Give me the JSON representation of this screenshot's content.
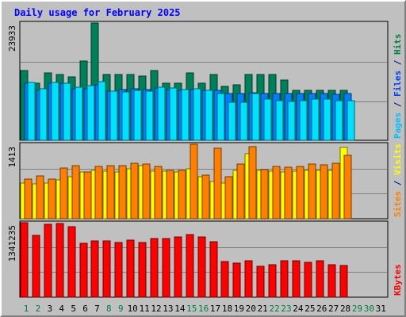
{
  "chart_data": {
    "type": "bar",
    "title": "Daily usage for February 2025",
    "categories": [
      "1",
      "2",
      "3",
      "4",
      "5",
      "6",
      "7",
      "8",
      "9",
      "10",
      "11",
      "12",
      "13",
      "14",
      "15",
      "16",
      "17",
      "18",
      "19",
      "20",
      "21",
      "22",
      "23",
      "24",
      "25",
      "26",
      "27",
      "28",
      "29",
      "30",
      "31"
    ],
    "weekend_days": [
      "1",
      "2",
      "8",
      "9",
      "15",
      "16",
      "22",
      "23",
      "29",
      "30"
    ],
    "panels": [
      {
        "id": "hits-files-pages",
        "max_label": "23933",
        "ymax": 23933,
        "side_labels": [
          {
            "text": "Pages",
            "color": "#00c0ff"
          },
          {
            "text": " / ",
            "color": "#000080"
          },
          {
            "text": "Files",
            "color": "#0040ff"
          },
          {
            "text": " / ",
            "color": "#000080"
          },
          {
            "text": "Hits",
            "color": "#008040"
          }
        ],
        "series": [
          {
            "name": "Hits",
            "color": "#00805a",
            "values": [
              14150,
              11700,
              13780,
              13410,
              12960,
              16180,
              23933,
              13410,
              13400,
              13400,
              13030,
              14150,
              11700,
              11700,
              13780,
              11700,
              13410,
              10950,
              11300,
              13410,
              13380,
              13400,
              12230,
              10220,
              10190,
              10220,
              10190,
              10220,
              null,
              null,
              null
            ]
          },
          {
            "name": "Files",
            "color": "#0080ff",
            "values": [
              11640,
              10180,
              11640,
              11660,
              10540,
              10540,
              11330,
              10100,
              10320,
              10520,
              10290,
              10750,
              10300,
              10240,
              10280,
              10240,
              10180,
              9510,
              9510,
              9700,
              9510,
              9510,
              9510,
              9510,
              9500,
              9500,
              9460,
              9530,
              null,
              null,
              null
            ]
          },
          {
            "name": "Pages",
            "color": "#00e0ff",
            "values": [
              11800,
              10510,
              11750,
              11720,
              10900,
              11140,
              12000,
              10010,
              9920,
              10130,
              9990,
              10910,
              10630,
              10340,
              10540,
              10170,
              9600,
              7840,
              7790,
              9610,
              8350,
              8100,
              7980,
              8100,
              8450,
              8350,
              8100,
              8040,
              null,
              null,
              null
            ]
          }
        ]
      },
      {
        "id": "visits-sites",
        "max_label": "1413",
        "ymax": 1413,
        "side_labels": [
          {
            "text": "Sites",
            "color": "#ff8000"
          },
          {
            "text": " / ",
            "color": "#000080"
          },
          {
            "text": "Visits",
            "color": "#ffff00"
          }
        ],
        "series": [
          {
            "name": "Visits",
            "color": "#ffff00",
            "values": [
              680,
              660,
              680,
              730,
              790,
              890,
              920,
              900,
              890,
              950,
              1000,
              900,
              900,
              880,
              950,
              800,
              700,
              680,
              920,
              1230,
              920,
              900,
              880,
              900,
              920,
              920,
              920,
              1360,
              null,
              null,
              null
            ]
          },
          {
            "name": "Sites",
            "color": "#ff8000",
            "values": [
              750,
              810,
              750,
              960,
              1000,
              890,
              990,
              1000,
              1000,
              1050,
              1040,
              990,
              920,
              920,
              1413,
              830,
              1340,
              790,
              1040,
              1370,
              930,
              990,
              970,
              990,
              1040,
              1020,
              1050,
              1200,
              null,
              null,
              null
            ]
          }
        ]
      },
      {
        "id": "kbytes",
        "max_label": "1341235",
        "ymax": 1341235,
        "side_labels": [
          {
            "text": "KBytes",
            "color": "#ff0000"
          }
        ],
        "series": [
          {
            "name": "KBytes",
            "color": "#ff0000",
            "values": [
              1341235,
              1120000,
              1318000,
              1330000,
              1266000,
              965000,
              1010000,
              1010000,
              985000,
              1025000,
              990000,
              1050000,
              1050000,
              1080000,
              1130000,
              1090000,
              1000000,
              640000,
              615000,
              650000,
              560000,
              580000,
              650000,
              650000,
              625000,
              650000,
              580000,
              570000,
              null,
              null,
              null
            ]
          }
        ]
      }
    ]
  }
}
